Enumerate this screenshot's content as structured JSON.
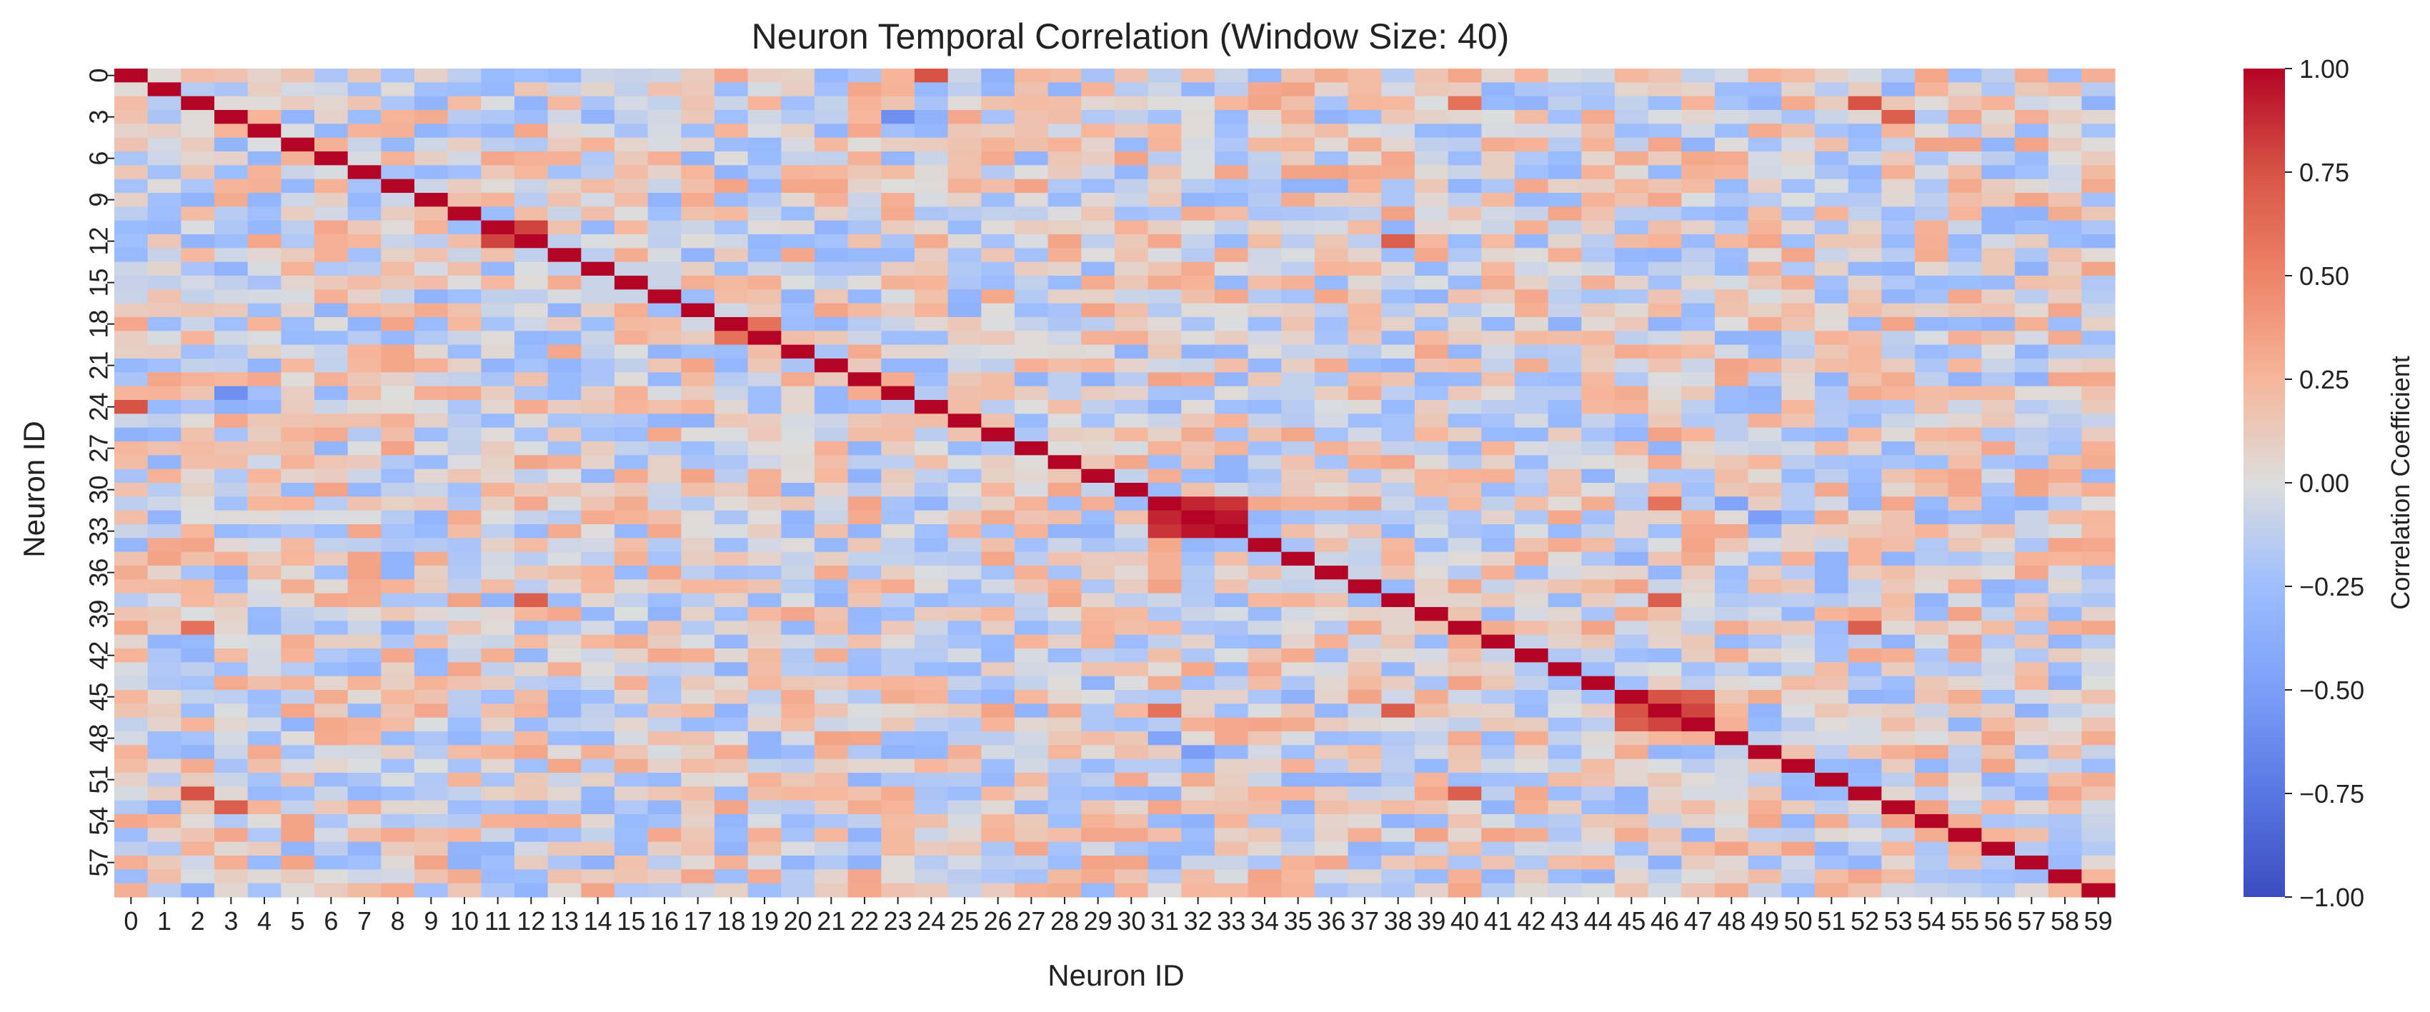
{
  "chart_data": {
    "type": "heatmap",
    "title": "Neuron Temporal Correlation (Window Size: 40)",
    "xlabel": "Neuron ID",
    "ylabel": "Neuron ID",
    "n": 60,
    "x_ticks": [
      "0",
      "1",
      "2",
      "3",
      "4",
      "5",
      "6",
      "7",
      "8",
      "9",
      "10",
      "11",
      "12",
      "13",
      "14",
      "15",
      "16",
      "17",
      "18",
      "19",
      "20",
      "21",
      "22",
      "23",
      "24",
      "25",
      "26",
      "27",
      "28",
      "29",
      "30",
      "31",
      "32",
      "33",
      "34",
      "35",
      "36",
      "37",
      "38",
      "39",
      "40",
      "41",
      "42",
      "43",
      "44",
      "45",
      "46",
      "47",
      "48",
      "49",
      "50",
      "51",
      "52",
      "53",
      "54",
      "55",
      "56",
      "57",
      "58",
      "59"
    ],
    "y_ticks": [
      "0",
      "3",
      "6",
      "9",
      "12",
      "15",
      "18",
      "21",
      "24",
      "27",
      "30",
      "33",
      "36",
      "39",
      "42",
      "45",
      "48",
      "51",
      "54",
      "57"
    ],
    "y_tick_rows": [
      0,
      3,
      6,
      9,
      12,
      15,
      18,
      21,
      24,
      27,
      30,
      33,
      36,
      39,
      42,
      45,
      48,
      51,
      54,
      57
    ],
    "vmin": -1.0,
    "vmax": 1.0,
    "colormap": "coolwarm",
    "colorbar": {
      "label": "Correlation Coefficient",
      "ticks": [
        "1.00",
        "0.75",
        "0.50",
        "0.25",
        "0.00",
        "−0.25",
        "−0.50",
        "−0.75",
        "−1.00"
      ],
      "tick_values": [
        1.0,
        0.75,
        0.5,
        0.25,
        0.0,
        -0.25,
        -0.5,
        -0.75,
        -1.0
      ]
    },
    "diagonal_value": 1.0,
    "notable_pairs": [
      {
        "i": 0,
        "j": 24,
        "value": 0.75
      },
      {
        "i": 11,
        "j": 12,
        "value": 0.8
      },
      {
        "i": 18,
        "j": 19,
        "value": 0.6
      },
      {
        "i": 31,
        "j": 32,
        "value": 0.9
      },
      {
        "i": 31,
        "j": 33,
        "value": 0.85
      },
      {
        "i": 32,
        "j": 33,
        "value": 0.95
      },
      {
        "i": 45,
        "j": 46,
        "value": 0.75
      },
      {
        "i": 45,
        "j": 47,
        "value": 0.7
      },
      {
        "i": 46,
        "j": 47,
        "value": 0.8
      },
      {
        "i": 2,
        "j": 52,
        "value": 0.75
      },
      {
        "i": 3,
        "j": 53,
        "value": 0.7
      },
      {
        "i": 12,
        "j": 38,
        "value": 0.7
      },
      {
        "i": 38,
        "j": 46,
        "value": 0.7
      },
      {
        "i": 31,
        "j": 46,
        "value": 0.6
      },
      {
        "i": 40,
        "j": 52,
        "value": 0.7
      },
      {
        "i": 2,
        "j": 40,
        "value": 0.6
      },
      {
        "i": 3,
        "j": 23,
        "value": -0.6
      },
      {
        "i": 32,
        "j": 49,
        "value": -0.5
      },
      {
        "i": 31,
        "j": 48,
        "value": -0.45
      }
    ]
  }
}
